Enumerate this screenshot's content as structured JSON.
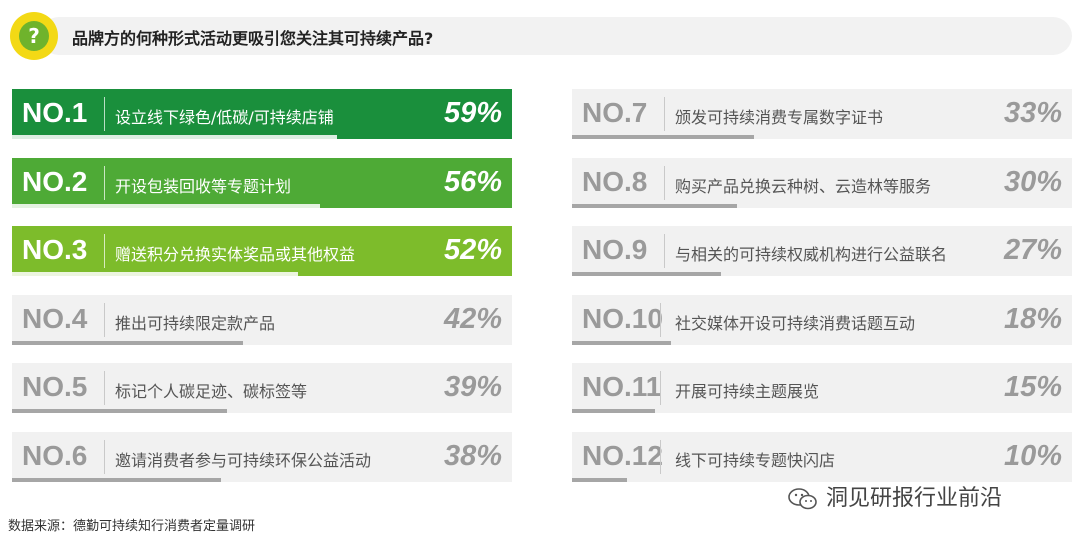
{
  "header": {
    "icon": "question-mark-icon",
    "icon_glyph": "?",
    "question": "品牌方的何种形式活动更吸引您关注其可持续产品?"
  },
  "colors": {
    "rank1": "#1a8f3c",
    "rank2": "#4eaa36",
    "rank3": "#7dbc2b",
    "neutral_bg": "#f1f1f1",
    "neutral_text": "#9a9a9a",
    "neutral_fill": "#a6a6a6"
  },
  "chart_data": {
    "type": "bar",
    "categories": [
      "设立线下绿色/低碳/可持续店铺",
      "开设包装回收等专题计划",
      "赠送积分兑换实体奖品或其他权益",
      "推出可持续限定款产品",
      "标记个人碳足迹、碳标签等",
      "邀请消费者参与可持续环保公益活动",
      "颁发可持续消费专属数字证书",
      "购买产品兑换云种树、云造林等服务",
      "与相关的可持续权威机构进行公益联名",
      "社交媒体开设可持续消费话题互动",
      "开展可持续主题展览",
      "线下可持续专题快闪店"
    ],
    "values": [
      59,
      56,
      52,
      42,
      39,
      38,
      33,
      30,
      27,
      18,
      15,
      10
    ],
    "ranks": [
      "NO.1",
      "NO.2",
      "NO.3",
      "NO.4",
      "NO.5",
      "NO.6",
      "NO.7",
      "NO.8",
      "NO.9",
      "NO.10",
      "NO.11",
      "NO.12"
    ],
    "labels": [
      "59%",
      "56%",
      "52%",
      "42%",
      "39%",
      "38%",
      "33%",
      "30%",
      "27%",
      "18%",
      "15%",
      "10%"
    ],
    "unit": "%"
  },
  "footer": {
    "source": "数据来源：德勤可持续知行消费者定量调研",
    "watermark": "洞见研报行业前沿",
    "watermark_icon": "wechat-icon"
  }
}
